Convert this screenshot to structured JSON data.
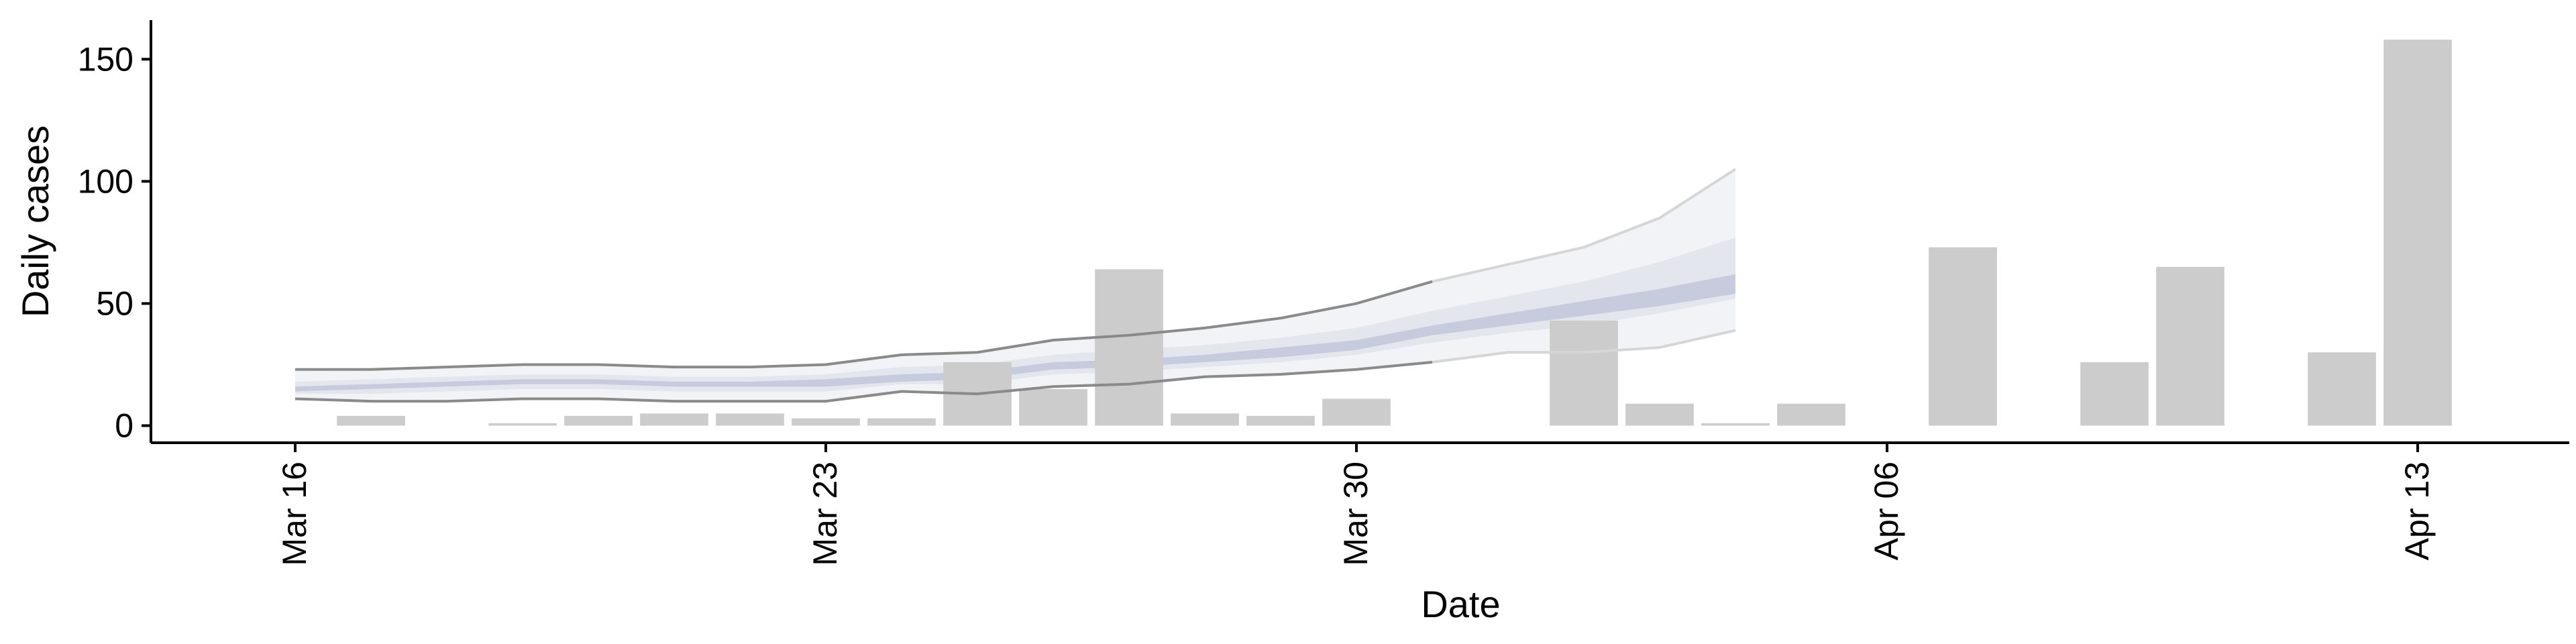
{
  "chart_data": {
    "type": "bar",
    "xlabel": "Date",
    "ylabel": "Daily cases",
    "x_axis_type": "date",
    "xlim": [
      "2020-03-16",
      "2020-04-14"
    ],
    "ylim": [
      -7,
      166
    ],
    "x_ticks": [
      {
        "date": "2020-03-16",
        "label": "Mar 16"
      },
      {
        "date": "2020-03-23",
        "label": "Mar 23"
      },
      {
        "date": "2020-03-30",
        "label": "Mar 30"
      },
      {
        "date": "2020-04-06",
        "label": "Apr 06"
      },
      {
        "date": "2020-04-13",
        "label": "Apr 13"
      }
    ],
    "y_ticks": [
      0,
      50,
      100,
      150
    ],
    "grid": false,
    "legend": "none",
    "colors": {
      "bars": "#cccccc",
      "band_outer": "#f2f3f7",
      "band_middle": "#e4e6ee",
      "band_inner": "#c6cbdd",
      "interval_lines": "#8a8a8a",
      "interval_lines_light": "#d6d6d6"
    },
    "series": [
      {
        "type": "bar",
        "data": [
          {
            "date": "2020-03-17",
            "value": 4
          },
          {
            "date": "2020-03-19",
            "value": 1
          },
          {
            "date": "2020-03-20",
            "value": 4
          },
          {
            "date": "2020-03-21",
            "value": 5
          },
          {
            "date": "2020-03-22",
            "value": 5
          },
          {
            "date": "2020-03-23",
            "value": 3
          },
          {
            "date": "2020-03-24",
            "value": 3
          },
          {
            "date": "2020-03-25",
            "value": 26
          },
          {
            "date": "2020-03-26",
            "value": 15
          },
          {
            "date": "2020-03-27",
            "value": 64
          },
          {
            "date": "2020-03-28",
            "value": 5
          },
          {
            "date": "2020-03-29",
            "value": 4
          },
          {
            "date": "2020-03-30",
            "value": 11
          },
          {
            "date": "2020-04-02",
            "value": 43
          },
          {
            "date": "2020-04-03",
            "value": 9
          },
          {
            "date": "2020-04-04",
            "value": 1
          },
          {
            "date": "2020-04-05",
            "value": 9
          },
          {
            "date": "2020-04-07",
            "value": 73
          },
          {
            "date": "2020-04-09",
            "value": 26
          },
          {
            "date": "2020-04-10",
            "value": 65
          },
          {
            "date": "2020-04-12",
            "value": 30
          },
          {
            "date": "2020-04-13",
            "value": 158
          }
        ]
      },
      {
        "type": "interval_band",
        "dates": [
          "2020-03-16",
          "2020-03-17",
          "2020-03-18",
          "2020-03-19",
          "2020-03-20",
          "2020-03-21",
          "2020-03-22",
          "2020-03-23",
          "2020-03-24",
          "2020-03-25",
          "2020-03-26",
          "2020-03-27",
          "2020-03-28",
          "2020-03-29",
          "2020-03-30",
          "2020-03-31",
          "2020-04-01",
          "2020-04-02",
          "2020-04-03",
          "2020-04-04"
        ],
        "outer_upper": [
          23,
          23,
          24,
          25,
          25,
          24,
          24,
          25,
          29,
          30,
          35,
          37,
          40,
          44,
          50,
          59,
          66,
          73,
          85,
          105
        ],
        "outer_lower": [
          11,
          10,
          10,
          11,
          11,
          10,
          10,
          10,
          14,
          13,
          16,
          17,
          20,
          21,
          23,
          26,
          30,
          30,
          32,
          39
        ],
        "middle_upper": [
          18,
          19,
          20,
          21,
          21,
          20,
          20,
          21,
          24,
          25,
          29,
          31,
          33,
          36,
          40,
          47,
          53,
          59,
          67,
          77
        ],
        "middle_lower": [
          13,
          13,
          14,
          15,
          15,
          14,
          14,
          14,
          17,
          17,
          21,
          22,
          24,
          26,
          29,
          34,
          38,
          41,
          46,
          52
        ],
        "inner_upper": [
          16,
          17,
          18,
          19,
          19,
          18,
          18,
          19,
          21,
          22,
          26,
          27,
          29,
          32,
          35,
          41,
          46,
          51,
          56,
          62
        ],
        "inner_lower": [
          14,
          15,
          16,
          17,
          17,
          16,
          16,
          16,
          18,
          19,
          23,
          24,
          26,
          28,
          31,
          37,
          41,
          45,
          49,
          54
        ]
      }
    ]
  }
}
